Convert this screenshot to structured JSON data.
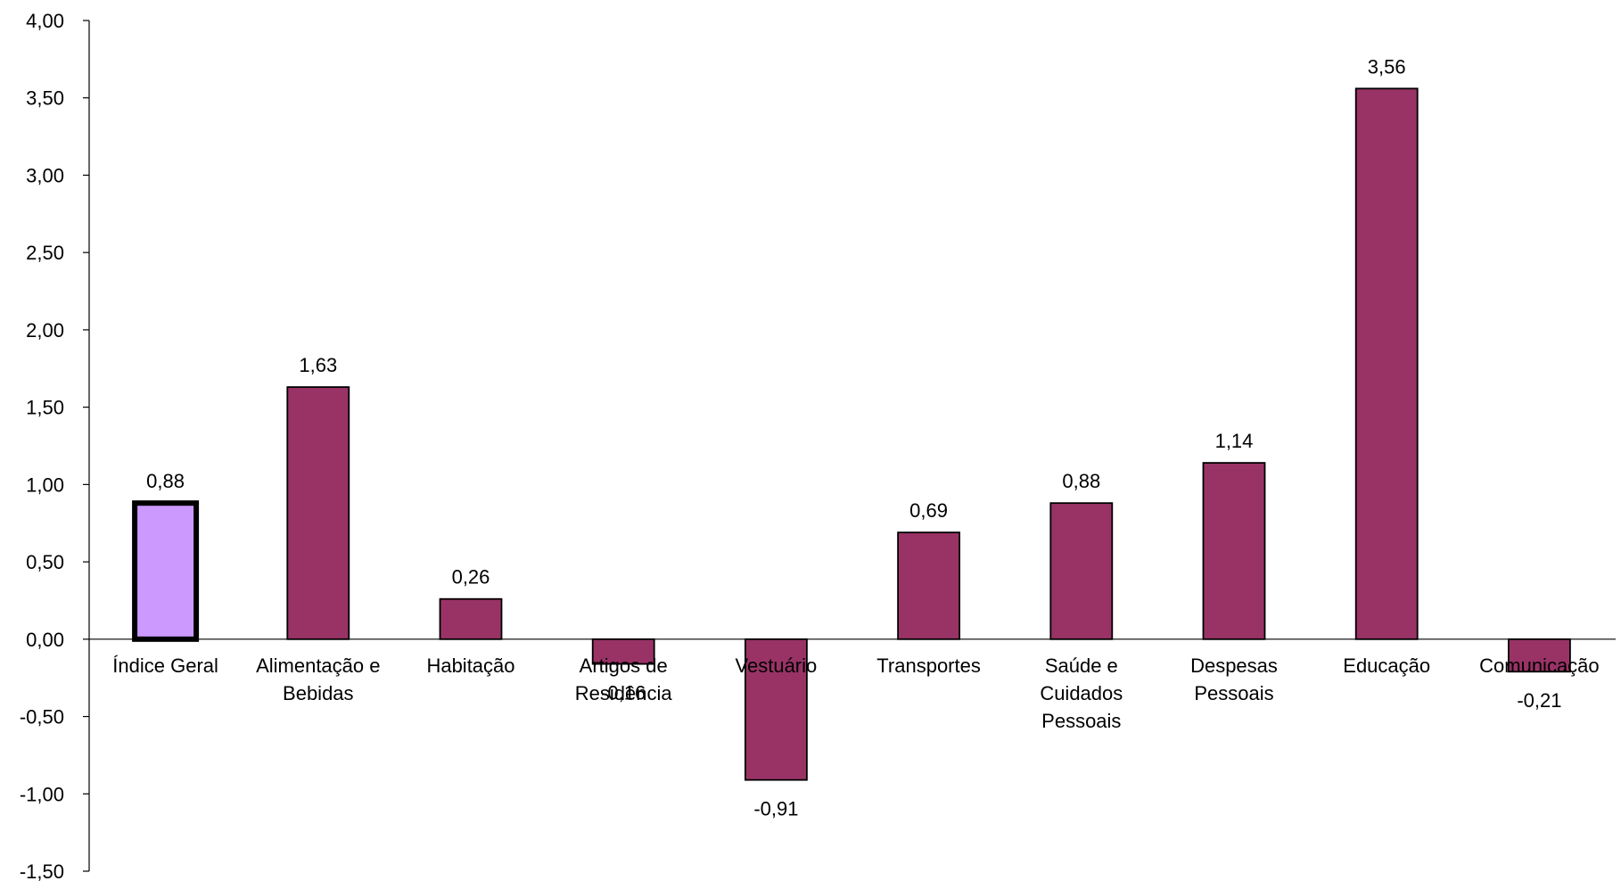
{
  "chart_data": {
    "type": "bar",
    "categories": [
      [
        "Índice Geral"
      ],
      [
        "Alimentação e",
        "Bebidas"
      ],
      [
        "Habitação"
      ],
      [
        "Artigos de",
        "Residência"
      ],
      [
        "Vestuário"
      ],
      [
        "Transportes"
      ],
      [
        "Saúde e",
        "Cuidados",
        "Pessoais"
      ],
      [
        "Despesas",
        "Pessoais"
      ],
      [
        "Educação"
      ],
      [
        "Comunicação"
      ]
    ],
    "values": [
      0.88,
      1.63,
      0.26,
      -0.16,
      -0.91,
      0.69,
      0.88,
      1.14,
      3.56,
      -0.21
    ],
    "value_labels": [
      "0,88",
      "1,63",
      "0,26",
      "-0,16",
      "-0,91",
      "0,69",
      "0,88",
      "1,14",
      "3,56",
      "-0,21"
    ],
    "y_ticks": [
      -1.5,
      -1.0,
      -0.5,
      0.0,
      0.5,
      1.0,
      1.5,
      2.0,
      2.5,
      3.0,
      3.5,
      4.0
    ],
    "y_tick_labels": [
      "-1,50",
      "-1,00",
      "-0,50",
      "0,00",
      "0,50",
      "1,00",
      "1,50",
      "2,00",
      "2,50",
      "3,00",
      "3,50",
      "4,00"
    ],
    "ylim": [
      -1.5,
      4.0
    ],
    "title": "",
    "xlabel": "",
    "ylabel": "",
    "grid": false,
    "legend": "none",
    "colors": {
      "bar": "#993366",
      "highlight_bar": "#CC99FF",
      "outline": "#000000"
    },
    "highlight_index": 0
  }
}
